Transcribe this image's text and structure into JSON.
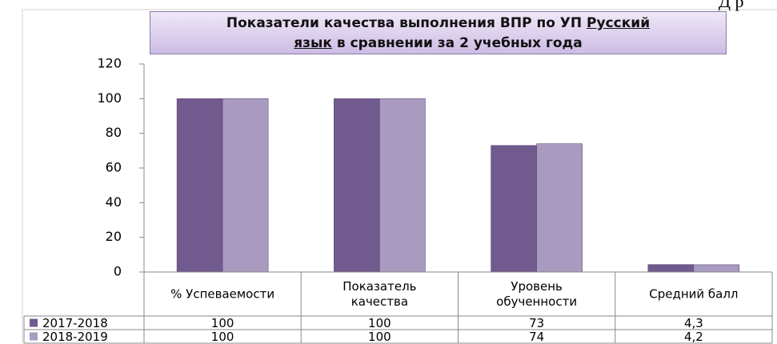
{
  "chart_data": {
    "type": "bar",
    "title_lines": [
      [
        {
          "text": "Показатели качества выполнения ВПР по УП ",
          "underline": false
        },
        {
          "text": "Русский",
          "underline": true
        }
      ],
      [
        {
          "text": "язык",
          "underline": true
        },
        {
          "text": " в сравнении за 2 учебных года",
          "underline": false
        }
      ]
    ],
    "annotation": "Д  р",
    "categories": [
      "% Успеваемости",
      "Показатель\nкачества",
      "Уровень\nобученности",
      "Средний балл"
    ],
    "series": [
      {
        "name": "2017-2018",
        "color": "#715a8e",
        "values": [
          100,
          100,
          73,
          4.3
        ],
        "value_labels": [
          "100",
          "100",
          "73",
          "4,3"
        ]
      },
      {
        "name": "2018-2019",
        "color": "#a99bc0",
        "values": [
          100,
          100,
          74,
          4.2
        ],
        "value_labels": [
          "100",
          "100",
          "74",
          "4,2"
        ]
      }
    ],
    "ylim": [
      0,
      120
    ],
    "yticks": [
      0,
      20,
      40,
      60,
      80,
      100,
      120
    ],
    "grid": false
  }
}
